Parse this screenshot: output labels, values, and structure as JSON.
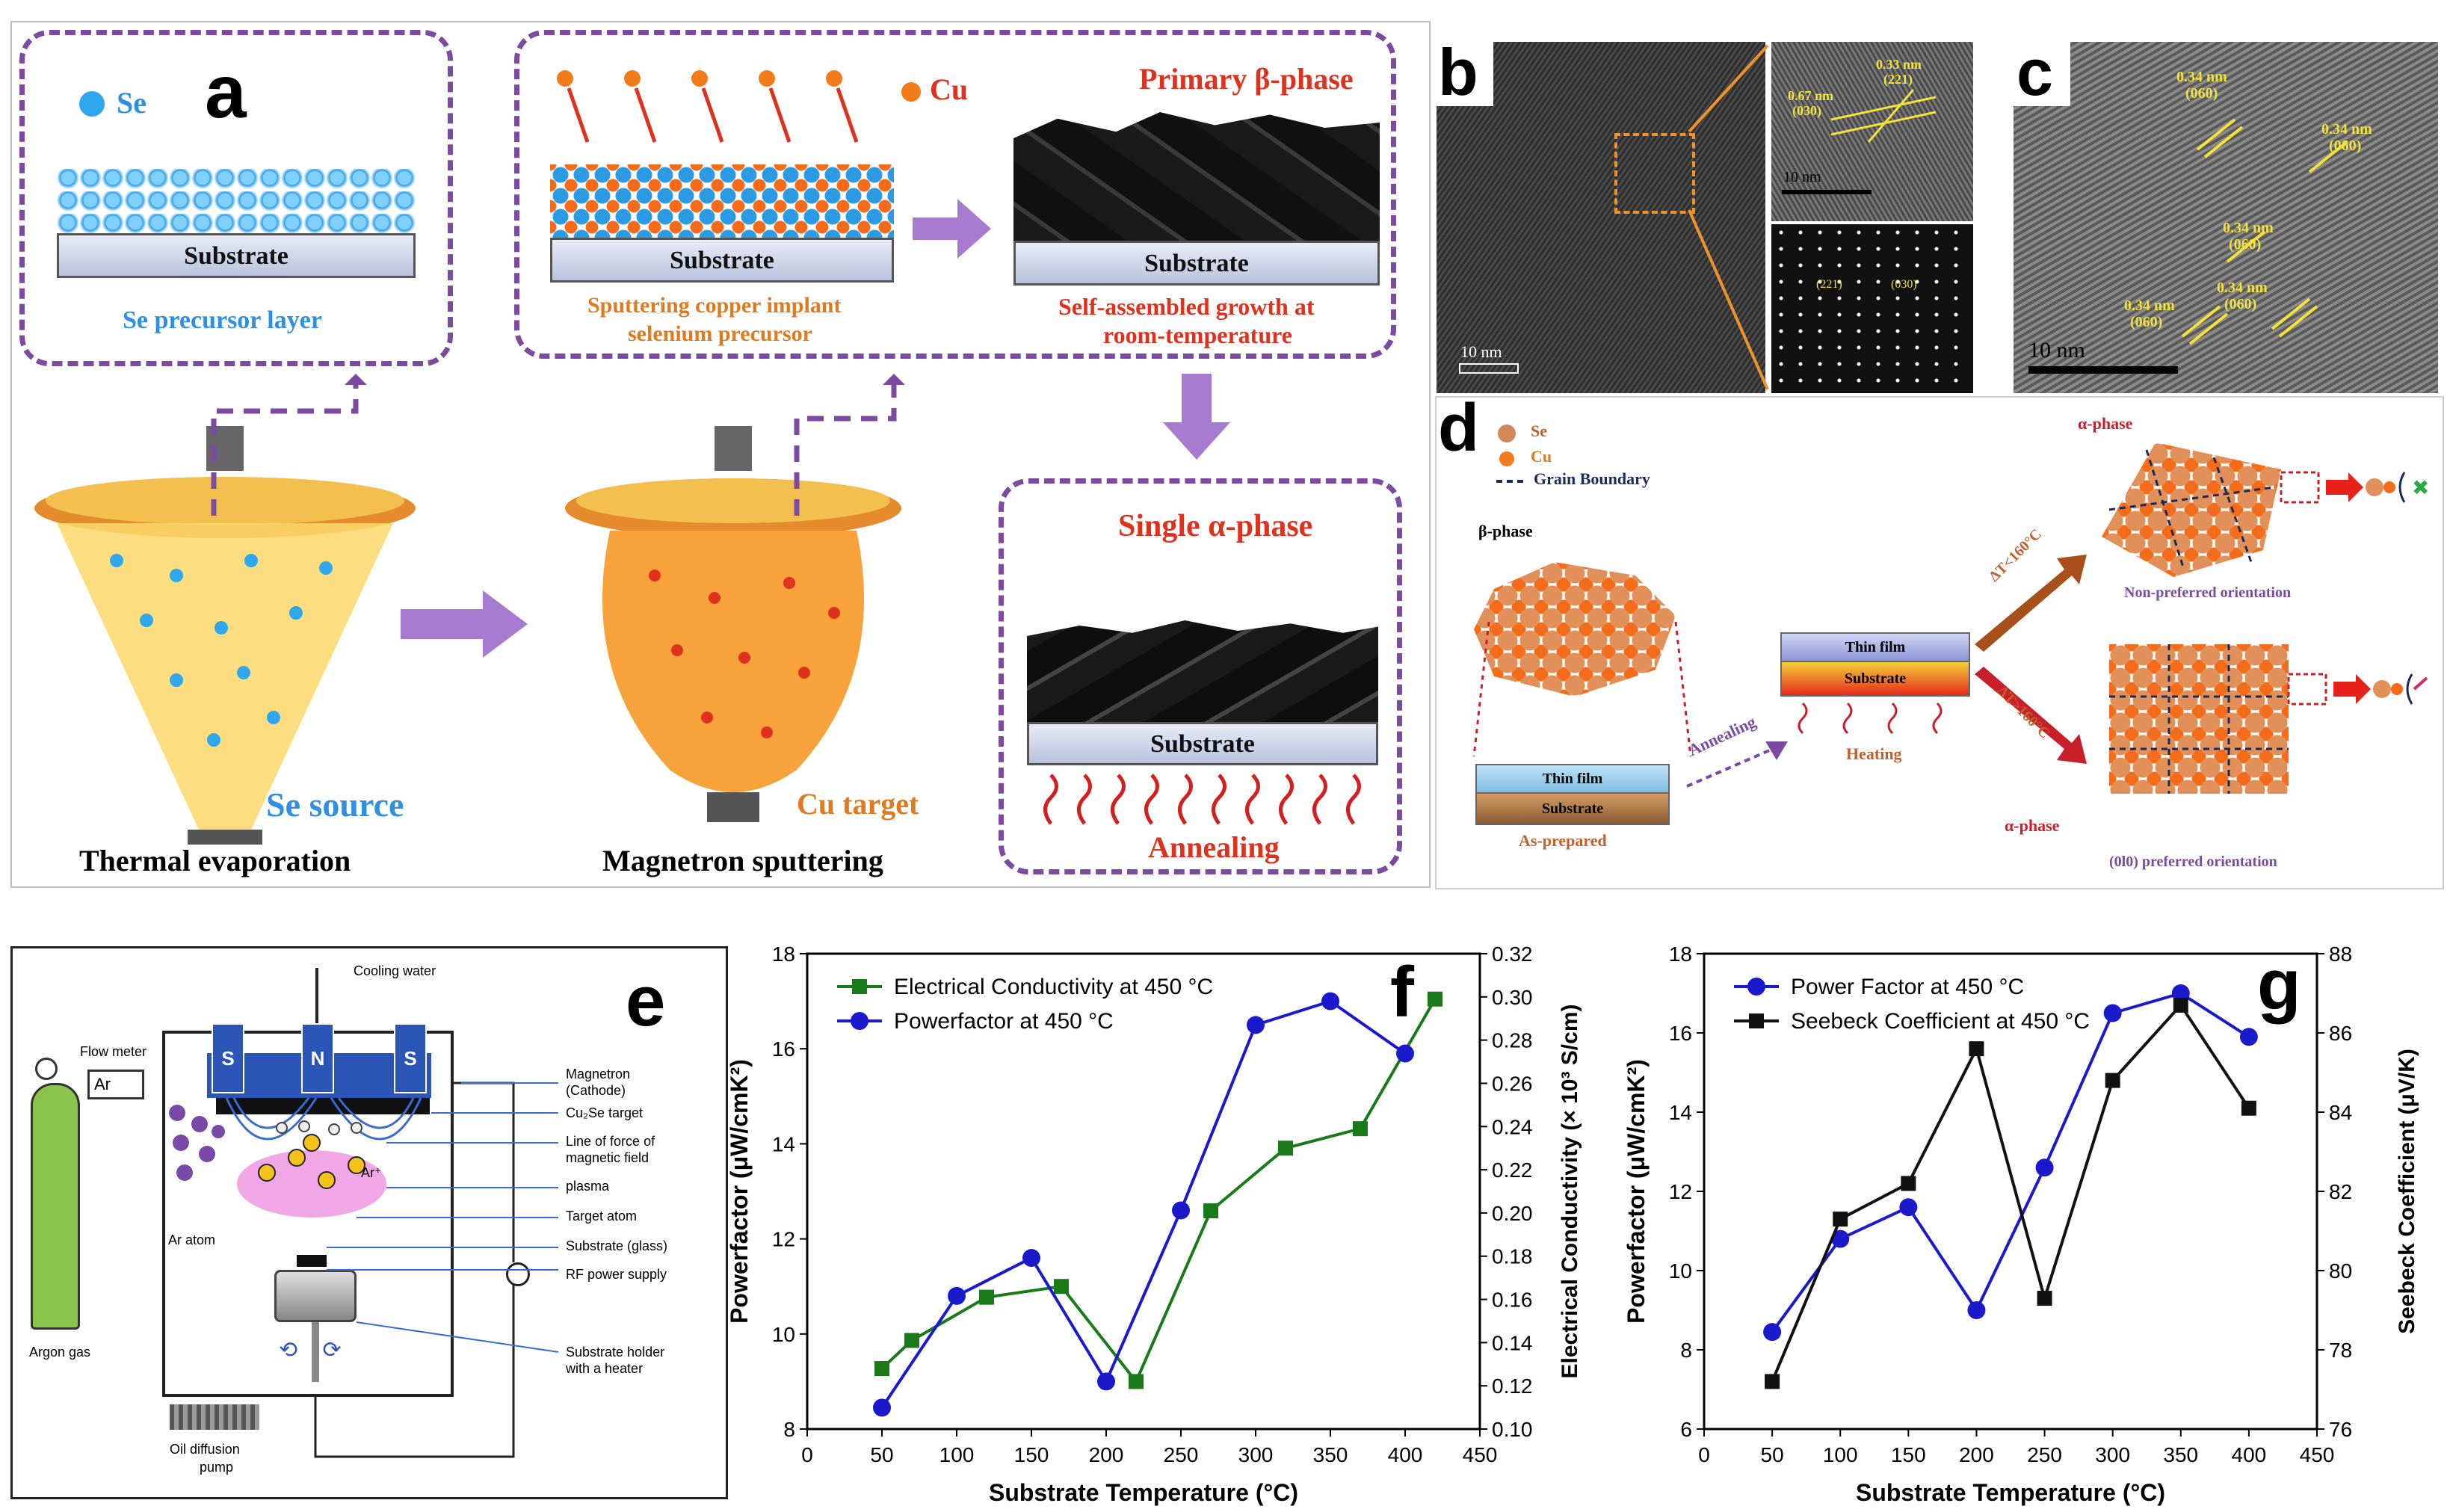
{
  "panel_a": {
    "letter": "a",
    "se_legend": "Se",
    "cu_legend": "Cu",
    "substrate": "Substrate",
    "se_precursor_layer": "Se precursor layer",
    "primary_beta": "Primary β-phase",
    "sputtering_caption_1": "Sputtering copper implant",
    "sputtering_caption_2": "selenium precursor",
    "self_assembled_1": "Self-assembled growth at",
    "self_assembled_2": "room-temperature",
    "single_alpha": "Single α-phase",
    "annealing": "Annealing",
    "se_source": "Se source",
    "cu_target": "Cu target",
    "thermal_evaporation": "Thermal evaporation",
    "magnetron_sputtering": "Magnetron sputtering"
  },
  "panel_b": {
    "letter": "b",
    "scale_main": "10 nm",
    "scale_inset": "10 nm",
    "d1": "0.33 nm",
    "d1_idx": "(221)",
    "d2": "0.67 nm",
    "d2_idx": "(030)",
    "fft1": "(221)",
    "fft2": "(030)"
  },
  "panel_c": {
    "letter": "c",
    "scale": "10 nm",
    "labels": [
      {
        "d": "0.34 nm",
        "idx": "(060)"
      },
      {
        "d": "0.34 nm",
        "idx": "(060)"
      },
      {
        "d": "0.34 nm",
        "idx": "(060)"
      },
      {
        "d": "0.34 nm",
        "idx": "(060)"
      },
      {
        "d": "0.34 nm",
        "idx": "(060)"
      }
    ]
  },
  "panel_d": {
    "letter": "d",
    "legend_se": "Se",
    "legend_cu": "Cu",
    "legend_gb": "Grain Boundary",
    "beta_phase": "β-phase",
    "thin_film": "Thin film",
    "substrate": "Substrate",
    "as_prepared": "As-prepared",
    "annealing": "Annealing",
    "heating": "Heating",
    "thin_film_2": "Thin film",
    "substrate_2": "Substrate",
    "dt_low": "ΔT<160°C",
    "dt_high": "ΔT>160°C",
    "alpha_phase_top": "α-phase",
    "alpha_phase_bottom": "α-phase",
    "non_preferred": "Non-preferred orientation",
    "preferred": "(0l0) preferred orientation"
  },
  "panel_e": {
    "letter": "e",
    "cooling_water": "Cooling water",
    "flow_meter": "Flow meter",
    "ar": "Ar",
    "magnetron": "Magnetron",
    "cathode": "(Cathode)",
    "target": "Cu₂Se target",
    "line_force_1": "Line of force of",
    "line_force_2": "magnetic field",
    "plasma": "plasma",
    "target_atom": "Target atom",
    "substrate_glass": "Substrate (glass)",
    "rf_power": "RF power supply",
    "holder_1": "Substrate holder",
    "holder_2": "with a heater",
    "ar_atom": "Ar atom",
    "argon_gas": "Argon gas",
    "oil_pump_1": "Oil diffusion",
    "oil_pump_2": "pump",
    "ar_plus": "Ar⁺",
    "s1": "S",
    "n": "N",
    "s2": "S"
  },
  "chart_data": [
    {
      "id": "f",
      "letter": "f",
      "type": "line",
      "xlabel": "Substrate Temperature (°C)",
      "ylabel_left": "Powerfactor (μW/cmK²)",
      "ylabel_right": "Electrical Conductivity (× 10³ S/cm)",
      "xlim": [
        0,
        450
      ],
      "xticks": [
        0,
        50,
        100,
        150,
        200,
        250,
        300,
        350,
        400,
        450
      ],
      "ylim_left": [
        8,
        18
      ],
      "yticks_left": [
        8,
        10,
        12,
        14,
        16,
        18
      ],
      "ylim_right": [
        0.1,
        0.32
      ],
      "yticks_right": [
        0.1,
        0.12,
        0.14,
        0.16,
        0.18,
        0.2,
        0.22,
        0.24,
        0.26,
        0.28,
        0.3,
        0.32
      ],
      "series": [
        {
          "name": "Electrical Conductivity at 450 °C",
          "axis": "right",
          "color": "#1a7a1a",
          "marker": "square",
          "x": [
            50,
            70,
            120,
            170,
            220,
            270,
            320,
            370,
            420
          ],
          "y": [
            0.128,
            0.141,
            0.161,
            0.166,
            0.122,
            0.201,
            0.23,
            0.239,
            0.299
          ]
        },
        {
          "name": "Powerfactor at 450 °C",
          "axis": "left",
          "color": "#1a1acc",
          "marker": "circle",
          "x": [
            50,
            100,
            150,
            200,
            250,
            300,
            350,
            400
          ],
          "y": [
            8.45,
            10.8,
            11.6,
            9.0,
            12.6,
            16.5,
            17.0,
            15.9
          ]
        }
      ]
    },
    {
      "id": "g",
      "letter": "g",
      "type": "line",
      "xlabel": "Substrate Temperature (°C)",
      "ylabel_left": "Powerfactor (μW/cmK²)",
      "ylabel_right": "Seebeck Coefficient (μV/K)",
      "xlim": [
        0,
        450
      ],
      "xticks": [
        0,
        50,
        100,
        150,
        200,
        250,
        300,
        350,
        400,
        450
      ],
      "ylim_left": [
        6,
        18
      ],
      "yticks_left": [
        6,
        8,
        10,
        12,
        14,
        16,
        18
      ],
      "ylim_right": [
        76,
        88
      ],
      "yticks_right": [
        76,
        78,
        80,
        82,
        84,
        86,
        88
      ],
      "series": [
        {
          "name": "Power Factor at 450 °C",
          "axis": "left",
          "color": "#1a1acc",
          "marker": "circle",
          "x": [
            50,
            100,
            150,
            200,
            250,
            300,
            350,
            400
          ],
          "y": [
            8.45,
            10.8,
            11.6,
            9.0,
            12.6,
            16.5,
            17.0,
            15.9
          ]
        },
        {
          "name": "Seebeck Coefficient at 450 °C",
          "axis": "right",
          "color": "#111111",
          "marker": "square",
          "x": [
            50,
            100,
            150,
            200,
            250,
            300,
            350,
            400
          ],
          "y": [
            77.2,
            81.3,
            82.2,
            85.6,
            79.3,
            84.8,
            86.7,
            84.1
          ]
        }
      ]
    }
  ]
}
